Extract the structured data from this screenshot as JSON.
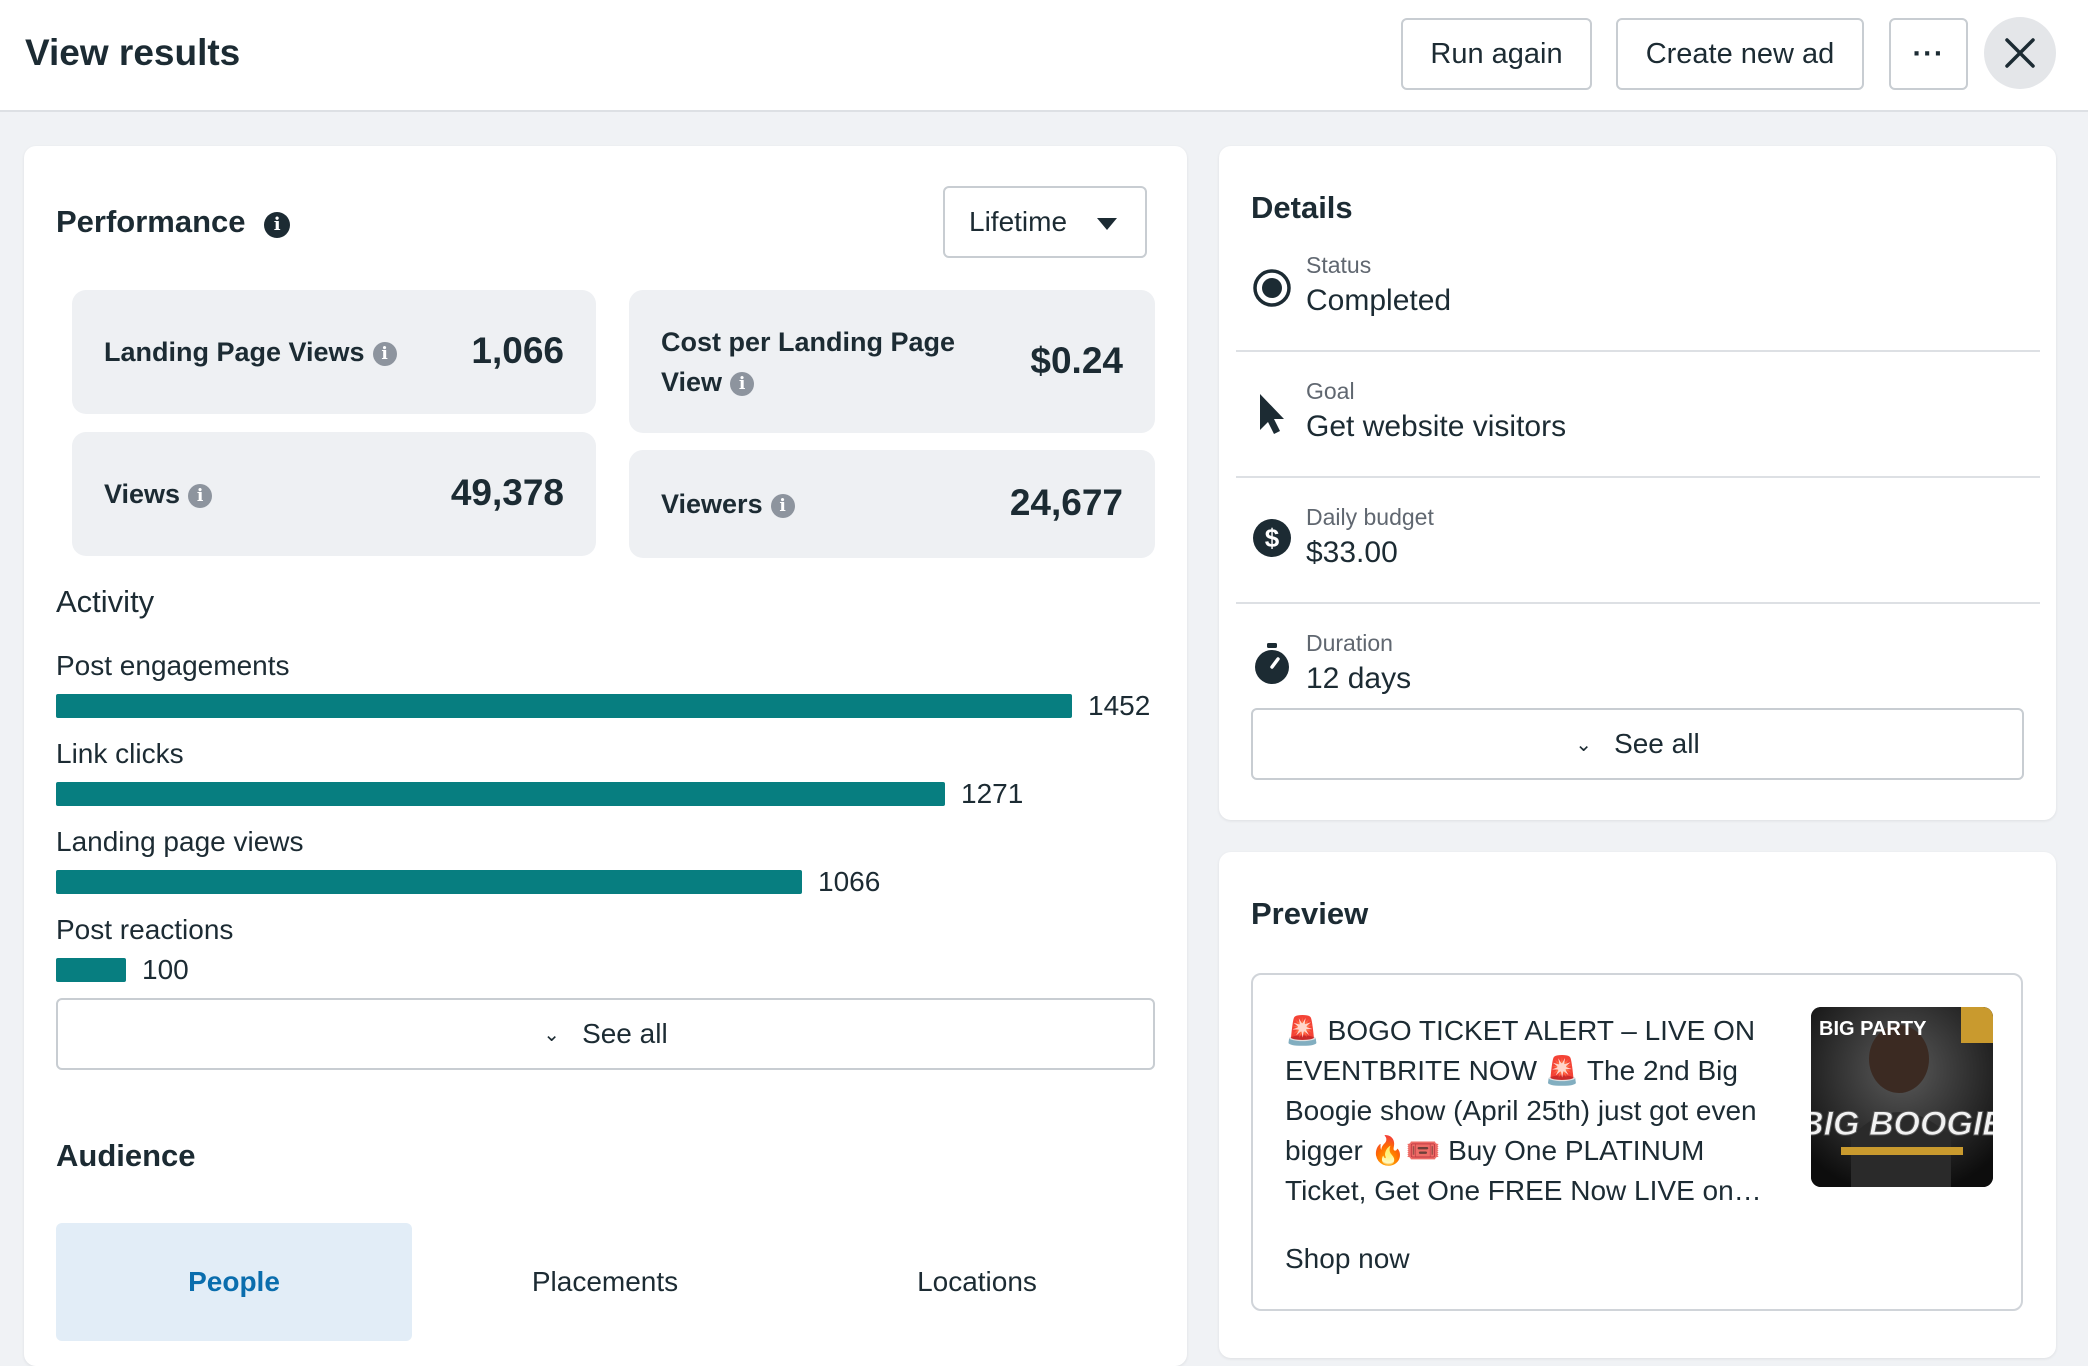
{
  "header": {
    "title": "View results",
    "run_again": "Run again",
    "create_new_ad": "Create new ad",
    "more": "···"
  },
  "performance": {
    "title": "Performance",
    "range": "Lifetime",
    "metrics": [
      {
        "label": "Landing Page Views",
        "value": "1,066"
      },
      {
        "label": "Cost per Landing Page View",
        "value": "$0.24"
      },
      {
        "label": "Views",
        "value": "49,378"
      },
      {
        "label": "Viewers",
        "value": "24,677"
      }
    ]
  },
  "activity": {
    "title": "Activity",
    "max": 1452,
    "items": [
      {
        "label": "Post engagements",
        "value": 1452,
        "display": "1452"
      },
      {
        "label": "Link clicks",
        "value": 1271,
        "display": "1271"
      },
      {
        "label": "Landing page views",
        "value": 1066,
        "display": "1066"
      },
      {
        "label": "Post reactions",
        "value": 100,
        "display": "100"
      }
    ],
    "see_all": "See all"
  },
  "audience": {
    "title": "Audience",
    "tabs": [
      "People",
      "Placements",
      "Locations"
    ],
    "active_tab": "People"
  },
  "details": {
    "title": "Details",
    "rows": [
      {
        "label": "Status",
        "value": "Completed",
        "icon": "radio-icon"
      },
      {
        "label": "Goal",
        "value": "Get website visitors",
        "icon": "cursor-icon"
      },
      {
        "label": "Daily budget",
        "value": "$33.00",
        "icon": "dollar-icon"
      },
      {
        "label": "Duration",
        "value": "12 days",
        "icon": "stopwatch-icon"
      }
    ],
    "see_all": "See all"
  },
  "preview": {
    "title": "Preview",
    "text": "🚨 BOGO TICKET ALERT – LIVE ON EVENTBRITE NOW 🚨 The 2nd Big Boogie show (April 25th) just got even bigger 🔥🎟️ Buy One PLATINUM Ticket, Get One FREE Now LIVE on…",
    "cta": "Shop now",
    "image_text_top": "BIG PARTY",
    "image_text_main": "BIG BOOGIE"
  },
  "colors": {
    "bar": "#077e80",
    "accent_tab_bg": "#e2edf7",
    "accent_tab_text": "#0a6dad"
  }
}
